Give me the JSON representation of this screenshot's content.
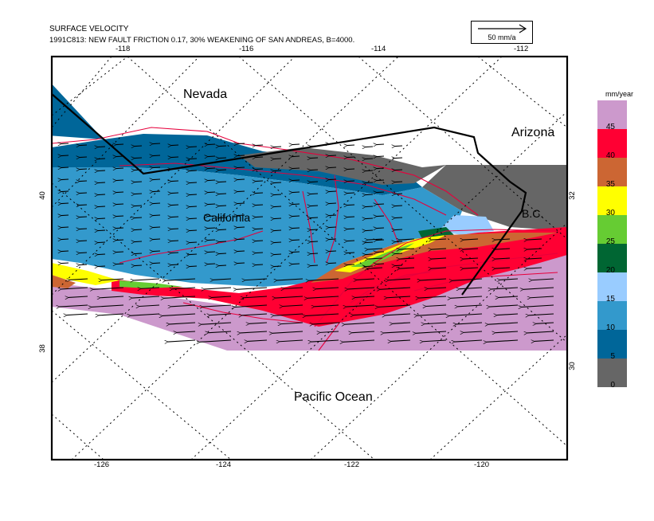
{
  "title": "SURFACE VELOCITY",
  "subtitle": "1991C813: NEW FAULT FRICTION 0.17, 30% WEAKENING OF SAN ANDREAS, B=4000.",
  "scale": {
    "label": "50 mm/a"
  },
  "top_ticks": [
    "-118",
    "-116",
    "-114",
    "-112"
  ],
  "bottom_ticks": [
    "-126",
    "-124",
    "-122",
    "-120"
  ],
  "left_ticks": [
    "40",
    "38"
  ],
  "right_ticks": [
    "32",
    "30"
  ],
  "labels": {
    "nevada": "Nevada",
    "arizona": "Arizona",
    "california": "California",
    "bc": "B.C.",
    "pacific": "Pacific Ocean"
  },
  "legend": {
    "unit": "mm/year",
    "colors": [
      "#cc99cc",
      "#ff0033",
      "#cc6633",
      "#ffff00",
      "#66cc33",
      "#006633",
      "#99ccff",
      "#3399cc",
      "#006699",
      "#666666"
    ],
    "ticks": [
      "45",
      "40",
      "35",
      "30",
      "25",
      "20",
      "15",
      "10",
      "5",
      "0"
    ]
  }
}
